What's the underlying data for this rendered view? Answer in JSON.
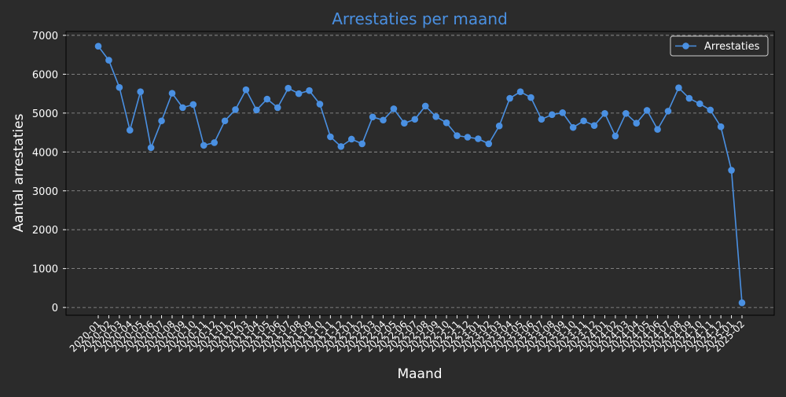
{
  "chart_data": {
    "type": "line",
    "title": "Arrestaties per maand",
    "xlabel": "Maand",
    "ylabel": "Aantal arrestaties",
    "ylim": [
      -200,
      7100
    ],
    "yticks": [
      0,
      1000,
      2000,
      3000,
      4000,
      5000,
      6000,
      7000
    ],
    "grid": "horizontal dashed",
    "legend_position": "top-right",
    "colors": {
      "background": "#2b2b2b",
      "text": "#ffffff",
      "title": "#4a90e2",
      "line": "#4a90e2",
      "grid": "#999999",
      "axis": "#000000"
    },
    "categories": [
      "2020-01",
      "2020-02",
      "2020-03",
      "2020-04",
      "2020-05",
      "2020-06",
      "2020-07",
      "2020-08",
      "2020-09",
      "2020-10",
      "2020-11",
      "2020-12",
      "2021-01",
      "2021-02",
      "2021-03",
      "2021-04",
      "2021-05",
      "2021-06",
      "2021-07",
      "2021-08",
      "2021-09",
      "2021-10",
      "2021-11",
      "2021-12",
      "2022-01",
      "2022-02",
      "2022-03",
      "2022-04",
      "2022-05",
      "2022-06",
      "2022-07",
      "2022-08",
      "2022-09",
      "2022-10",
      "2022-11",
      "2022-12",
      "2023-01",
      "2023-02",
      "2023-03",
      "2023-04",
      "2023-05",
      "2023-06",
      "2023-07",
      "2023-08",
      "2023-09",
      "2023-10",
      "2023-11",
      "2023-12",
      "2024-01",
      "2024-02",
      "2024-03",
      "2024-04",
      "2024-05",
      "2024-06",
      "2024-07",
      "2024-08",
      "2024-09",
      "2024-10",
      "2024-11",
      "2024-12",
      "2025-01",
      "2025-02"
    ],
    "series": [
      {
        "name": "Arrestaties",
        "values": [
          6720,
          6360,
          5660,
          4560,
          5550,
          4110,
          4800,
          5510,
          5140,
          5220,
          4170,
          4240,
          4800,
          5090,
          5600,
          5080,
          5360,
          5140,
          5640,
          5500,
          5580,
          5230,
          4390,
          4140,
          4330,
          4210,
          4900,
          4820,
          5110,
          4740,
          4840,
          5180,
          4910,
          4750,
          4420,
          4380,
          4340,
          4210,
          4670,
          5380,
          5550,
          5400,
          4840,
          4960,
          5010,
          4630,
          4800,
          4680,
          4990,
          4410,
          4990,
          4740,
          5070,
          4580,
          5050,
          5650,
          5380,
          5240,
          5080,
          4650,
          3530,
          120
        ]
      }
    ]
  }
}
